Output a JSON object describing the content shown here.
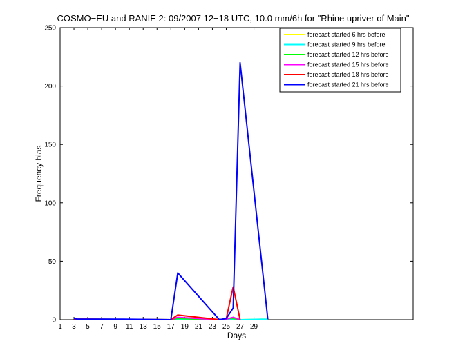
{
  "chart_data": {
    "type": "line",
    "title": "COSMO−EU and RANIE 2: 09/2007 12−18 UTC, 10.0 mm/6h for \"Rhine upriver of Main\"",
    "xlabel": "Days",
    "ylabel": "Frequency bias",
    "xlim": [
      1,
      52
    ],
    "ylim": [
      0,
      250
    ],
    "xticks": [
      1,
      3,
      5,
      7,
      9,
      11,
      13,
      15,
      17,
      19,
      21,
      23,
      25,
      27,
      29
    ],
    "xtick_labels": [
      "1",
      "3",
      "5",
      "7",
      "9",
      "11",
      "13",
      "15",
      "17",
      "19",
      "21",
      "23",
      "25",
      "27",
      "29"
    ],
    "yticks": [
      0,
      50,
      100,
      150,
      200,
      250
    ],
    "ytick_labels": [
      "0",
      "50",
      "100",
      "150",
      "200",
      "250"
    ],
    "grid": false,
    "legend_position": "top-right",
    "series": [
      {
        "name": "forecast started 6 hrs before",
        "color": "#ffff00",
        "x": [
          3,
          3.5,
          17,
          18,
          24,
          25,
          26,
          27,
          31
        ],
        "y": [
          1,
          0.5,
          0,
          1,
          0,
          0.5,
          1,
          0,
          0.5
        ]
      },
      {
        "name": "forecast started 9 hrs before",
        "color": "#00ffff",
        "x": [
          3,
          3.5,
          17,
          18,
          24,
          25,
          26,
          27,
          31
        ],
        "y": [
          0.5,
          0.5,
          0,
          0.5,
          0,
          0.5,
          0.5,
          0,
          0.5
        ]
      },
      {
        "name": "forecast started 12 hrs before",
        "color": "#00ff00",
        "x": [
          3,
          3.5,
          17,
          18,
          24,
          25,
          26,
          27
        ],
        "y": [
          0.5,
          0.5,
          0,
          1,
          0,
          1,
          1,
          0
        ]
      },
      {
        "name": "forecast started 15 hrs before",
        "color": "#ff00ff",
        "x": [
          3,
          3.5,
          17,
          18,
          24,
          25,
          26,
          27
        ],
        "y": [
          0.5,
          0.5,
          0,
          2,
          0,
          0.5,
          2,
          0
        ]
      },
      {
        "name": "forecast started 18 hrs before",
        "color": "#ff0000",
        "x": [
          3,
          3.5,
          17,
          18,
          24,
          25,
          26,
          27
        ],
        "y": [
          0.5,
          0.5,
          0,
          4,
          0,
          1,
          28,
          0
        ]
      },
      {
        "name": "forecast started 21 hrs before",
        "color": "#0000ff",
        "x": [
          3,
          3.5,
          10,
          17,
          18,
          24,
          25,
          26,
          27,
          31
        ],
        "y": [
          1,
          0.5,
          0.5,
          0,
          40,
          0,
          1,
          10,
          220,
          0.5
        ]
      }
    ]
  }
}
